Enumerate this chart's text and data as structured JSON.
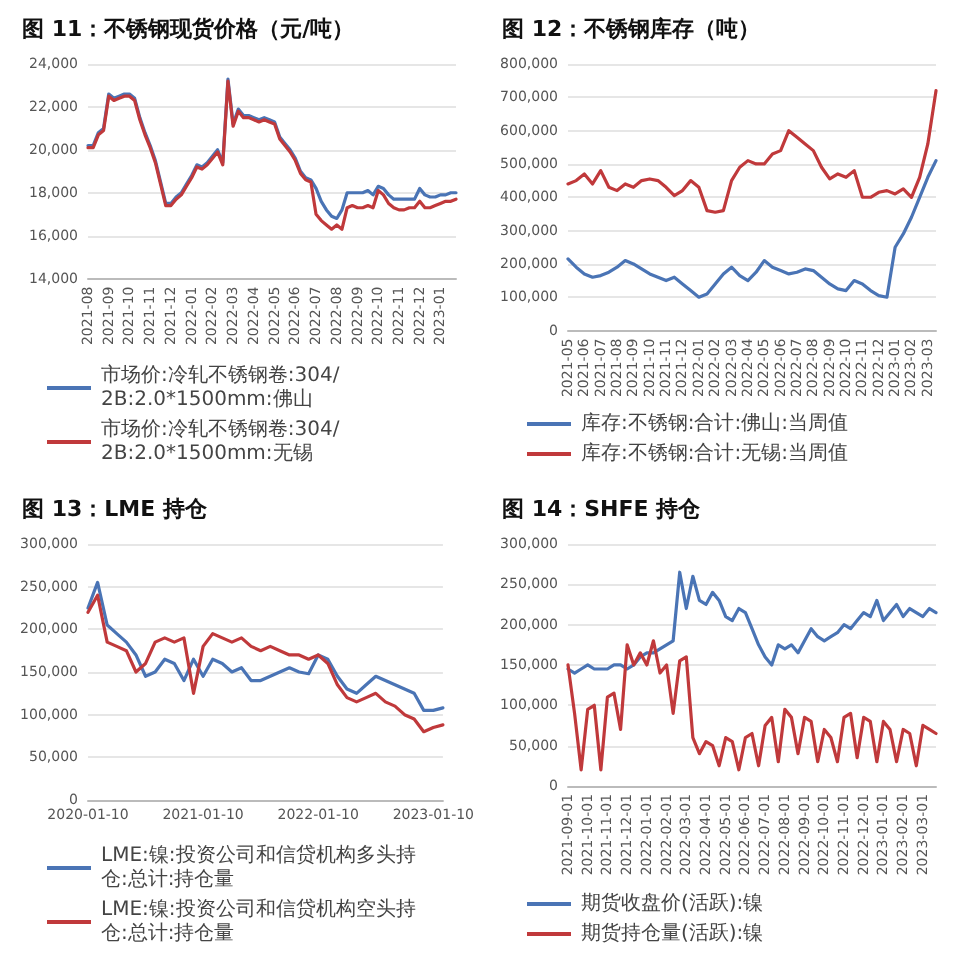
{
  "chart_data": [
    {
      "type": "line",
      "title": "图 11：不锈钢现货价格（元/吨）",
      "legend": "bottom",
      "grid": "y",
      "marker": "none",
      "categories": [
        "2021-08",
        null,
        null,
        null,
        "2021-09",
        null,
        null,
        null,
        "2021-10",
        null,
        null,
        null,
        "2021-11",
        null,
        null,
        null,
        "2021-12",
        null,
        null,
        null,
        "2022-01",
        null,
        null,
        null,
        "2022-02",
        null,
        null,
        null,
        "2022-03",
        null,
        null,
        null,
        "2022-04",
        null,
        null,
        null,
        "2022-05",
        null,
        null,
        null,
        "2022-06",
        null,
        null,
        null,
        "2022-07",
        null,
        null,
        null,
        "2022-08",
        null,
        null,
        null,
        "2022-09",
        null,
        null,
        null,
        "2022-10",
        null,
        null,
        null,
        "2022-11",
        null,
        null,
        null,
        "2022-12",
        null,
        null,
        null,
        "2023-01",
        null,
        null,
        null
      ],
      "ylim": [
        14000,
        24000
      ],
      "yticks": [
        {
          "value": 14000,
          "label": "14,000"
        },
        {
          "value": 16000,
          "label": "16,000"
        },
        {
          "value": 18000,
          "label": "18,000"
        },
        {
          "value": 20000,
          "label": "20,000"
        },
        {
          "value": 22000,
          "label": "22,000"
        },
        {
          "value": 24000,
          "label": "24,000"
        }
      ],
      "series": [
        {
          "name": "市场价:冷轧不锈钢卷:304/2B:2.0*1500mm:佛山",
          "color": "#4a74b5",
          "values": [
            20200,
            20200,
            20800,
            21000,
            22600,
            22400,
            22500,
            22600,
            22600,
            22400,
            21500,
            20800,
            20200,
            19500,
            18500,
            17500,
            17500,
            17800,
            18000,
            18400,
            18800,
            19300,
            19200,
            19400,
            19700,
            20000,
            19400,
            23300,
            21200,
            21900,
            21600,
            21600,
            21500,
            21400,
            21500,
            21400,
            21300,
            20600,
            20300,
            20000,
            19600,
            19000,
            18700,
            18600,
            18200,
            17600,
            17200,
            16900,
            16800,
            17200,
            18000,
            18000,
            18000,
            18000,
            18100,
            17900,
            18300,
            18200,
            17900,
            17700,
            17700,
            17700,
            17700,
            17700,
            18200,
            17900,
            17800,
            17800,
            17900,
            17900,
            18000,
            18000
          ]
        },
        {
          "name": "市场价:冷轧不锈钢卷:304/2B:2.0*1500mm:无锡",
          "color": "#c0393b",
          "values": [
            20100,
            20100,
            20700,
            20900,
            22500,
            22300,
            22400,
            22500,
            22500,
            22300,
            21400,
            20700,
            20100,
            19400,
            18400,
            17400,
            17400,
            17700,
            17900,
            18300,
            18700,
            19200,
            19100,
            19300,
            19600,
            19900,
            19300,
            23200,
            21100,
            21800,
            21500,
            21500,
            21400,
            21300,
            21400,
            21300,
            21200,
            20500,
            20200,
            19900,
            19500,
            18900,
            18600,
            18500,
            17000,
            16700,
            16500,
            16300,
            16500,
            16300,
            17300,
            17400,
            17300,
            17300,
            17400,
            17300,
            18100,
            17900,
            17500,
            17300,
            17200,
            17200,
            17300,
            17300,
            17600,
            17300,
            17300,
            17400,
            17500,
            17600,
            17600,
            17700
          ]
        }
      ]
    },
    {
      "type": "line",
      "title": "图 12：不锈钢库存（吨）",
      "legend": "bottom",
      "grid": "y",
      "marker": "none",
      "categories": [
        "2021-05",
        null,
        "2021-06",
        null,
        "2021-07",
        null,
        "2021-08",
        null,
        "2021-09",
        null,
        "2021-10",
        null,
        "2021-11",
        null,
        "2021-12",
        null,
        "2022-01",
        null,
        "2022-02",
        null,
        "2022-03",
        null,
        "2022-04",
        null,
        "2022-05",
        null,
        "2022-06",
        null,
        "2022-07",
        null,
        "2022-08",
        null,
        "2022-09",
        null,
        "2022-10",
        null,
        "2022-11",
        null,
        "2022-12",
        null,
        "2023-01",
        null,
        "2023-02",
        null,
        "2023-03",
        null
      ],
      "ylim": [
        0,
        800000
      ],
      "yticks": [
        {
          "value": 0,
          "label": "0"
        },
        {
          "value": 100000,
          "label": "100,000"
        },
        {
          "value": 200000,
          "label": "200,000"
        },
        {
          "value": 300000,
          "label": "300,000"
        },
        {
          "value": 400000,
          "label": "400,000"
        },
        {
          "value": 500000,
          "label": "500,000"
        },
        {
          "value": 600000,
          "label": "600,000"
        },
        {
          "value": 700000,
          "label": "700,000"
        },
        {
          "value": 800000,
          "label": "800,000"
        }
      ],
      "series": [
        {
          "name": "库存:不锈钢:合计:佛山:当周值",
          "color": "#4a74b5",
          "values": [
            215000,
            190000,
            170000,
            160000,
            165000,
            175000,
            190000,
            210000,
            200000,
            185000,
            170000,
            160000,
            150000,
            160000,
            140000,
            120000,
            100000,
            110000,
            140000,
            170000,
            190000,
            165000,
            150000,
            175000,
            210000,
            190000,
            180000,
            170000,
            175000,
            185000,
            180000,
            160000,
            140000,
            125000,
            120000,
            150000,
            140000,
            120000,
            105000,
            100000,
            250000,
            290000,
            340000,
            400000,
            460000,
            510000
          ]
        },
        {
          "name": "库存:不锈钢:合计:无锡:当周值",
          "color": "#c0393b",
          "values": [
            440000,
            450000,
            470000,
            440000,
            480000,
            430000,
            420000,
            440000,
            430000,
            450000,
            455000,
            450000,
            430000,
            405000,
            420000,
            450000,
            430000,
            360000,
            355000,
            360000,
            450000,
            490000,
            510000,
            500000,
            500000,
            530000,
            540000,
            600000,
            580000,
            560000,
            540000,
            490000,
            455000,
            470000,
            460000,
            480000,
            400000,
            400000,
            415000,
            420000,
            410000,
            425000,
            400000,
            460000,
            560000,
            720000
          ]
        }
      ]
    },
    {
      "type": "line",
      "title": "图 13：LME 持仓",
      "legend": "bottom",
      "grid": "y",
      "marker": "none",
      "categories": [
        "2020-01-10",
        null,
        null,
        null,
        null,
        null,
        null,
        null,
        null,
        null,
        null,
        null,
        "2021-01-10",
        null,
        null,
        null,
        null,
        null,
        null,
        null,
        null,
        null,
        null,
        null,
        "2022-01-10",
        null,
        null,
        null,
        null,
        null,
        null,
        null,
        null,
        null,
        null,
        null,
        "2023-01-10",
        null
      ],
      "ylim": [
        0,
        300000
      ],
      "yticks": [
        {
          "value": 0,
          "label": "0"
        },
        {
          "value": 50000,
          "label": "50,000"
        },
        {
          "value": 100000,
          "label": "100,000"
        },
        {
          "value": 150000,
          "label": "150,000"
        },
        {
          "value": 200000,
          "label": "200,000"
        },
        {
          "value": 250000,
          "label": "250,000"
        },
        {
          "value": 300000,
          "label": "300,000"
        }
      ],
      "series": [
        {
          "name": "LME:镍:投资公司和信贷机构多头持仓:总计:持仓量",
          "color": "#4a74b5",
          "values": [
            225000,
            255000,
            205000,
            195000,
            185000,
            170000,
            145000,
            150000,
            165000,
            160000,
            140000,
            165000,
            145000,
            165000,
            160000,
            150000,
            155000,
            140000,
            140000,
            145000,
            150000,
            155000,
            150000,
            148000,
            170000,
            165000,
            145000,
            130000,
            125000,
            135000,
            145000,
            140000,
            135000,
            130000,
            125000,
            105000,
            105000,
            108000
          ]
        },
        {
          "name": "LME:镍:投资公司和信贷机构空头持仓:总计:持仓量",
          "color": "#c0393b",
          "values": [
            220000,
            240000,
            185000,
            180000,
            175000,
            150000,
            160000,
            185000,
            190000,
            185000,
            190000,
            125000,
            180000,
            195000,
            190000,
            185000,
            190000,
            180000,
            175000,
            180000,
            175000,
            170000,
            170000,
            165000,
            170000,
            160000,
            135000,
            120000,
            115000,
            120000,
            125000,
            115000,
            110000,
            100000,
            95000,
            80000,
            85000,
            88000
          ]
        }
      ]
    },
    {
      "type": "line",
      "title": "图 14：SHFE 持仓",
      "legend": "bottom",
      "grid": "y",
      "marker": "none",
      "categories": [
        "2021-09-01",
        null,
        null,
        "2021-10-01",
        null,
        null,
        "2021-11-01",
        null,
        null,
        "2021-12-01",
        null,
        null,
        "2022-01-01",
        null,
        null,
        "2022-02-01",
        null,
        null,
        "2022-03-01",
        null,
        null,
        "2022-04-01",
        null,
        null,
        "2022-05-01",
        null,
        null,
        "2022-06-01",
        null,
        null,
        "2022-07-01",
        null,
        null,
        "2022-08-01",
        null,
        null,
        "2022-09-01",
        null,
        null,
        "2022-10-01",
        null,
        null,
        "2022-11-01",
        null,
        null,
        "2022-12-01",
        null,
        null,
        "2023-01-01",
        null,
        null,
        "2023-02-01",
        null,
        null,
        "2023-03-01",
        null,
        null
      ],
      "ylim": [
        0,
        300000
      ],
      "yticks": [
        {
          "value": 0,
          "label": "0"
        },
        {
          "value": 50000,
          "label": "50,000"
        },
        {
          "value": 100000,
          "label": "100,000"
        },
        {
          "value": 150000,
          "label": "150,000"
        },
        {
          "value": 200000,
          "label": "200,000"
        },
        {
          "value": 250000,
          "label": "250,000"
        },
        {
          "value": 300000,
          "label": "300,000"
        }
      ],
      "series": [
        {
          "name": "期货收盘价(活跃):镍",
          "color": "#4a74b5",
          "values": [
            145000,
            140000,
            145000,
            150000,
            145000,
            145000,
            145000,
            150000,
            150000,
            145000,
            150000,
            160000,
            165000,
            165000,
            170000,
            175000,
            180000,
            265000,
            220000,
            260000,
            230000,
            225000,
            240000,
            230000,
            210000,
            205000,
            220000,
            215000,
            195000,
            175000,
            160000,
            150000,
            175000,
            170000,
            175000,
            165000,
            180000,
            195000,
            185000,
            180000,
            185000,
            190000,
            200000,
            195000,
            205000,
            215000,
            210000,
            230000,
            205000,
            215000,
            225000,
            210000,
            220000,
            215000,
            210000,
            220000,
            215000
          ]
        },
        {
          "name": "期货持仓量(活跃):镍",
          "color": "#c0393b",
          "values": [
            150000,
            90000,
            20000,
            95000,
            100000,
            20000,
            110000,
            115000,
            70000,
            175000,
            150000,
            165000,
            150000,
            180000,
            140000,
            150000,
            90000,
            155000,
            160000,
            60000,
            40000,
            55000,
            50000,
            25000,
            60000,
            55000,
            20000,
            60000,
            65000,
            25000,
            75000,
            85000,
            30000,
            95000,
            85000,
            40000,
            85000,
            80000,
            30000,
            70000,
            60000,
            30000,
            85000,
            90000,
            35000,
            85000,
            80000,
            30000,
            80000,
            70000,
            30000,
            70000,
            65000,
            25000,
            75000,
            70000,
            65000
          ]
        }
      ]
    }
  ]
}
